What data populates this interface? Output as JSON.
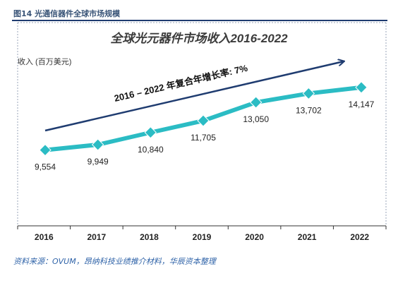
{
  "caption": "图14 光通信器件全球市场规模",
  "source": "资料来源：OVUM，昂纳科技业绩推介材料，华辰资本整理",
  "chart_data": {
    "type": "line",
    "title": "全球光元器件市场收入2016-2022",
    "ylabel": "收入 (百万美元)",
    "xlabel": "",
    "categories": [
      "2016",
      "2017",
      "2018",
      "2019",
      "2020",
      "2021",
      "2022"
    ],
    "series": [
      {
        "values": [
          9554,
          9949,
          10840,
          11705,
          13050,
          13702,
          14147
        ]
      }
    ],
    "data_labels": [
      "9,554",
      "9,949",
      "10,840",
      "11,705",
      "13,050",
      "13,702",
      "14,147"
    ],
    "annotation": "2016 – 2022 年复合年增长率: 7%",
    "ylim": [
      4000,
      16000
    ],
    "grid": false,
    "legend": "none",
    "colors": {
      "line": "#2bbcc4",
      "marker": "#2bbcc4",
      "arrow": "#1f3c70",
      "title": "#3b3b3b"
    }
  }
}
